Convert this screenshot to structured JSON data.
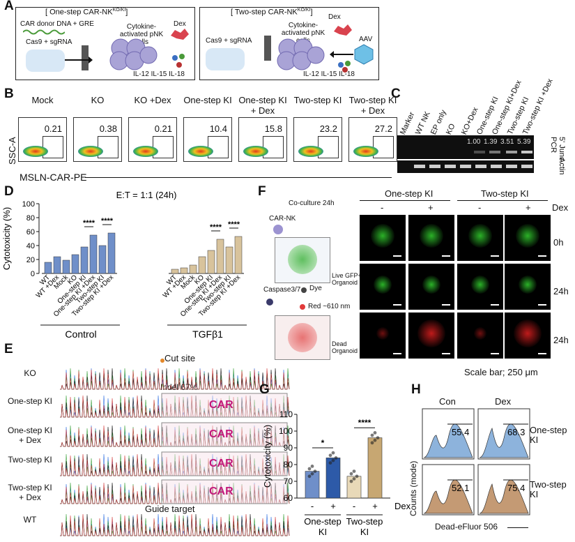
{
  "panelA": {
    "label": "A",
    "left_title": "[ One-step CAR-NK",
    "left_sup": "KO/KI",
    "left_title_end": "]",
    "right_title": "[ Two-step CAR-NK",
    "right_sup": "KO/KI",
    "right_title_end": "]",
    "car_donor": "CAR donor DNA + GRE",
    "cas9_left": "Cas9 + sgRNA",
    "cas9_right": "Cas9 + sgRNA",
    "cells_left": "Cytokine-activated pNK cells",
    "cells_right": "Cytokine-activated pNK cells",
    "dex_left": "Dex",
    "dex_right": "Dex",
    "aav": "AAV",
    "il_left": "IL-12 IL-15 IL-18",
    "il_right": "IL-12 IL-15 IL-18"
  },
  "panelB": {
    "label": "B",
    "samples": [
      {
        "name": "Mock",
        "value": "0.21"
      },
      {
        "name": "KO",
        "value": "0.38"
      },
      {
        "name": "KO +Dex",
        "value": "0.21"
      },
      {
        "name": "One-step KI",
        "value": "10.4"
      },
      {
        "name": "One-step KI + Dex",
        "value": "15.8"
      },
      {
        "name": "Two-step KI",
        "value": "23.2"
      },
      {
        "name": "Two-step KI + Dex",
        "value": "27.2"
      }
    ],
    "yaxis": "SSC-A",
    "xaxis": "MSLN-CAR-PE"
  },
  "panelC": {
    "label": "C",
    "lanes": [
      "Marker",
      "WT NK",
      "EP only",
      "KO",
      "KO+Dex",
      "One-step KI",
      "One-step KI+Dex",
      "Two-step KI",
      "Two-step KI +Dex"
    ],
    "band_values": [
      "1.00",
      "1.39",
      "3.51",
      "5.39"
    ],
    "row1_label": "5' Junc. PCR",
    "row2_label": "Actin"
  },
  "panelD": {
    "label": "D",
    "chart_data": {
      "type": "bar",
      "title": "E:T = 1:1 (24h)",
      "ylabel": "Cytotoxicity (%)",
      "ylim": [
        0,
        100
      ],
      "yticks": [
        "0",
        "20",
        "40",
        "60",
        "80",
        "100"
      ],
      "categories": [
        "WT",
        "WT +Dex",
        "Mock",
        "KO",
        "One-step KI",
        "One-step KI +Dex",
        "Two-step KI",
        "Two-step KI +Dex"
      ],
      "series": [
        {
          "name": "Control",
          "values": [
            16,
            24,
            19,
            27,
            38,
            55,
            40,
            58
          ],
          "color": "#6f8fc9"
        },
        {
          "name": "TGFβ1",
          "values": [
            6,
            8,
            12,
            24,
            33,
            49,
            38,
            53
          ],
          "color": "#d8c39c"
        }
      ],
      "significance": "****",
      "group_labels": [
        "Control",
        "TGFβ1"
      ]
    }
  },
  "panelE": {
    "label": "E",
    "cut_site": "Cut site",
    "indel": "Indel 67%",
    "guide": "Guide target",
    "rows": [
      {
        "name": "KO",
        "car": ""
      },
      {
        "name": "One-step KI",
        "car": "CAR"
      },
      {
        "name": "One-step KI + Dex",
        "car": "CAR"
      },
      {
        "name": "Two-step KI",
        "car": "CAR"
      },
      {
        "name": "Two-step KI + Dex",
        "car": "CAR"
      },
      {
        "name": "WT",
        "car": ""
      }
    ]
  },
  "panelF": {
    "label": "F",
    "coculture": "Co-culture 24h",
    "carnk": "CAR-NK",
    "live": "Live GFP+ Organoid",
    "caspase": "Caspase3/7",
    "dye": "Dye",
    "red": "Red ~610 nm",
    "dead": "Dead Organoid",
    "groups": [
      "One-step KI",
      "Two-step KI"
    ],
    "signs": [
      "-",
      "+",
      "-",
      "+"
    ],
    "dex": "Dex",
    "rows": [
      "0h",
      "24h",
      "24h"
    ],
    "scalebar": "Scale bar; 250 μm"
  },
  "panelG": {
    "label": "G",
    "chart_data": {
      "type": "bar",
      "ylabel": "Cytotoxicity (%)",
      "ylim": [
        60,
        110
      ],
      "yticks": [
        "60",
        "70",
        "80",
        "90",
        "100",
        "110"
      ],
      "categories": [
        "One-step KI -",
        "One-step KI +",
        "Two-step KI -",
        "Two-step KI +"
      ],
      "values": [
        76,
        84,
        73,
        96
      ],
      "colors": [
        "#6f8fc9",
        "#2d5aa8",
        "#e8d9b8",
        "#c7a772"
      ],
      "significance": [
        "*",
        "****"
      ],
      "signs": [
        "-",
        "+",
        "-",
        "+"
      ],
      "dex": "Dex",
      "groups": [
        "One-step KI",
        "Two-step KI"
      ]
    }
  },
  "panelH": {
    "label": "H",
    "cols": [
      "Con",
      "Dex"
    ],
    "values": [
      "55.4",
      "68.3",
      "52.1",
      "75.4"
    ],
    "rows": [
      "One-step KI",
      "Two-step KI"
    ],
    "ylabel": "Counts (mode)",
    "xlabel": "Dead-eFluor 506"
  }
}
